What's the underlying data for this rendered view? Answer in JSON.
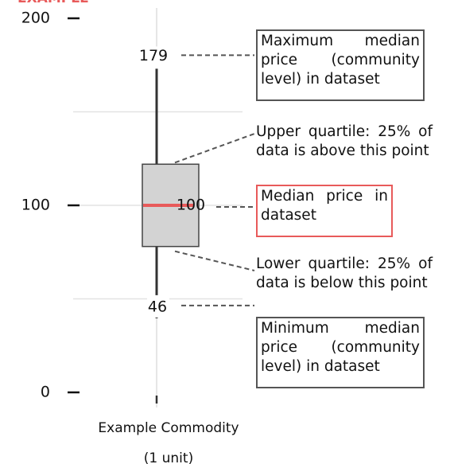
{
  "chart_data": {
    "type": "box",
    "title": "EXAMPLE",
    "categories": [
      "Example Commodity"
    ],
    "xlabel": "(1 unit)",
    "ylim": [
      0,
      200
    ],
    "yticks": [
      0,
      100,
      200
    ],
    "grid_lines": [
      50,
      100,
      150
    ],
    "box": {
      "min": 46,
      "q1": 78,
      "median": 100,
      "q3": 122,
      "max": 179
    },
    "value_labels": {
      "max": "179",
      "median": "100",
      "min": "46"
    },
    "box_color": "#d3d3d3",
    "median_color": "#e85a5a",
    "annotations": [
      {
        "text": "Maximum median price (community level) in dataset",
        "target": "max",
        "style": "boxed"
      },
      {
        "text": "Upper quartile: 25% of data is above this point",
        "target": "q3",
        "style": "plain"
      },
      {
        "text": "Median price in dataset",
        "target": "median",
        "style": "red"
      },
      {
        "text": "Lower quartile: 25% of data is below this point",
        "target": "q1",
        "style": "plain"
      },
      {
        "text": "Minimum median price (community level) in dataset",
        "target": "min",
        "style": "boxed"
      }
    ]
  }
}
